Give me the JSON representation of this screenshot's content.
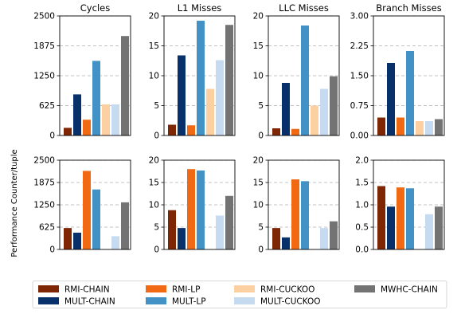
{
  "figure": {
    "ylabel": "Performance Counter/tuple"
  },
  "legend": {
    "placement": "bottom",
    "items": [
      {
        "name": "RMI-CHAIN",
        "color": "#7f2704"
      },
      {
        "name": "MULT-CHAIN",
        "color": "#08306b"
      },
      {
        "name": "RMI-LP",
        "color": "#f16913"
      },
      {
        "name": "MULT-LP",
        "color": "#4292c6"
      },
      {
        "name": "RMI-CUCKOO",
        "color": "#fdd0a2"
      },
      {
        "name": "MULT-CUCKOO",
        "color": "#c6dbef"
      },
      {
        "name": "MWHC-CHAIN",
        "color": "#737373"
      }
    ]
  },
  "chart_data": [
    {
      "type": "bar",
      "row": 1,
      "col": 1,
      "title": "Cycles",
      "ylim": [
        0,
        2500
      ],
      "yticks": [
        "0",
        "625",
        "1250",
        "1875",
        "2500"
      ],
      "grid": true,
      "series": [
        {
          "name": "RMI-CHAIN",
          "values": [
            160
          ]
        },
        {
          "name": "MULT-CHAIN",
          "values": [
            860
          ]
        },
        {
          "name": "RMI-LP",
          "values": [
            330
          ]
        },
        {
          "name": "MULT-LP",
          "values": [
            1560
          ]
        },
        {
          "name": "RMI-CUCKOO",
          "values": [
            650
          ]
        },
        {
          "name": "MULT-CUCKOO",
          "values": [
            650
          ]
        },
        {
          "name": "MWHC-CHAIN",
          "values": [
            2080
          ]
        }
      ]
    },
    {
      "type": "bar",
      "row": 1,
      "col": 2,
      "title": "L1 Misses",
      "ylim": [
        0,
        20
      ],
      "yticks": [
        "0",
        "5",
        "10",
        "15",
        "20"
      ],
      "grid": true,
      "series": [
        {
          "name": "RMI-CHAIN",
          "values": [
            1.8
          ]
        },
        {
          "name": "MULT-CHAIN",
          "values": [
            13.4
          ]
        },
        {
          "name": "RMI-LP",
          "values": [
            1.7
          ]
        },
        {
          "name": "MULT-LP",
          "values": [
            19.2
          ]
        },
        {
          "name": "RMI-CUCKOO",
          "values": [
            7.8
          ]
        },
        {
          "name": "MULT-CUCKOO",
          "values": [
            12.6
          ]
        },
        {
          "name": "MWHC-CHAIN",
          "values": [
            18.5
          ]
        }
      ]
    },
    {
      "type": "bar",
      "row": 1,
      "col": 3,
      "title": "LLC Misses",
      "ylim": [
        0,
        20
      ],
      "yticks": [
        "0",
        "5",
        "10",
        "15",
        "20"
      ],
      "grid": true,
      "series": [
        {
          "name": "RMI-CHAIN",
          "values": [
            1.2
          ]
        },
        {
          "name": "MULT-CHAIN",
          "values": [
            8.8
          ]
        },
        {
          "name": "RMI-LP",
          "values": [
            1.1
          ]
        },
        {
          "name": "MULT-LP",
          "values": [
            18.4
          ]
        },
        {
          "name": "RMI-CUCKOO",
          "values": [
            5.0
          ]
        },
        {
          "name": "MULT-CUCKOO",
          "values": [
            7.8
          ]
        },
        {
          "name": "MWHC-CHAIN",
          "values": [
            9.9
          ]
        }
      ]
    },
    {
      "type": "bar",
      "row": 1,
      "col": 4,
      "title": "Branch Misses",
      "ylim": [
        0,
        3
      ],
      "yticks": [
        "0.00",
        "0.75",
        "1.50",
        "2.25",
        "3.00"
      ],
      "grid": true,
      "series": [
        {
          "name": "RMI-CHAIN",
          "values": [
            0.45
          ]
        },
        {
          "name": "MULT-CHAIN",
          "values": [
            1.82
          ]
        },
        {
          "name": "RMI-LP",
          "values": [
            0.45
          ]
        },
        {
          "name": "MULT-LP",
          "values": [
            2.12
          ]
        },
        {
          "name": "RMI-CUCKOO",
          "values": [
            0.36
          ]
        },
        {
          "name": "MULT-CUCKOO",
          "values": [
            0.36
          ]
        },
        {
          "name": "MWHC-CHAIN",
          "values": [
            0.41
          ]
        }
      ]
    },
    {
      "type": "bar",
      "row": 2,
      "col": 1,
      "title": "",
      "ylim": [
        0,
        2500
      ],
      "yticks": [
        "0",
        "625",
        "1250",
        "1875",
        "2500"
      ],
      "grid": true,
      "series": [
        {
          "name": "RMI-CHAIN",
          "values": [
            600
          ]
        },
        {
          "name": "MULT-CHAIN",
          "values": [
            470
          ]
        },
        {
          "name": "RMI-LP",
          "values": [
            2200
          ]
        },
        {
          "name": "MULT-LP",
          "values": [
            1680
          ]
        },
        {
          "name": "RMI-CUCKOO",
          "values": [
            0
          ]
        },
        {
          "name": "MULT-CUCKOO",
          "values": [
            370
          ]
        },
        {
          "name": "MWHC-CHAIN",
          "values": [
            1320
          ]
        }
      ]
    },
    {
      "type": "bar",
      "row": 2,
      "col": 2,
      "title": "",
      "ylim": [
        0,
        20
      ],
      "yticks": [
        "0",
        "5",
        "10",
        "15",
        "20"
      ],
      "grid": true,
      "series": [
        {
          "name": "RMI-CHAIN",
          "values": [
            8.8
          ]
        },
        {
          "name": "MULT-CHAIN",
          "values": [
            4.8
          ]
        },
        {
          "name": "RMI-LP",
          "values": [
            18.0
          ]
        },
        {
          "name": "MULT-LP",
          "values": [
            17.7
          ]
        },
        {
          "name": "RMI-CUCKOO",
          "values": [
            0
          ]
        },
        {
          "name": "MULT-CUCKOO",
          "values": [
            7.6
          ]
        },
        {
          "name": "MWHC-CHAIN",
          "values": [
            12.0
          ]
        }
      ]
    },
    {
      "type": "bar",
      "row": 2,
      "col": 3,
      "title": "",
      "ylim": [
        0,
        20
      ],
      "yticks": [
        "0",
        "5",
        "10",
        "15",
        "20"
      ],
      "grid": true,
      "series": [
        {
          "name": "RMI-CHAIN",
          "values": [
            4.8
          ]
        },
        {
          "name": "MULT-CHAIN",
          "values": [
            2.7
          ]
        },
        {
          "name": "RMI-LP",
          "values": [
            15.7
          ]
        },
        {
          "name": "MULT-LP",
          "values": [
            15.3
          ]
        },
        {
          "name": "RMI-CUCKOO",
          "values": [
            0
          ]
        },
        {
          "name": "MULT-CUCKOO",
          "values": [
            4.8
          ]
        },
        {
          "name": "MWHC-CHAIN",
          "values": [
            6.3
          ]
        }
      ]
    },
    {
      "type": "bar",
      "row": 2,
      "col": 4,
      "title": "",
      "ylim": [
        0,
        2
      ],
      "yticks": [
        "0.0",
        "0.5",
        "1.0",
        "1.5",
        "2.0"
      ],
      "grid": true,
      "series": [
        {
          "name": "RMI-CHAIN",
          "values": [
            1.42
          ]
        },
        {
          "name": "MULT-CHAIN",
          "values": [
            0.96
          ]
        },
        {
          "name": "RMI-LP",
          "values": [
            1.39
          ]
        },
        {
          "name": "MULT-LP",
          "values": [
            1.37
          ]
        },
        {
          "name": "RMI-CUCKOO",
          "values": [
            0
          ]
        },
        {
          "name": "MULT-CUCKOO",
          "values": [
            0.79
          ]
        },
        {
          "name": "MWHC-CHAIN",
          "values": [
            0.96
          ]
        }
      ]
    }
  ]
}
